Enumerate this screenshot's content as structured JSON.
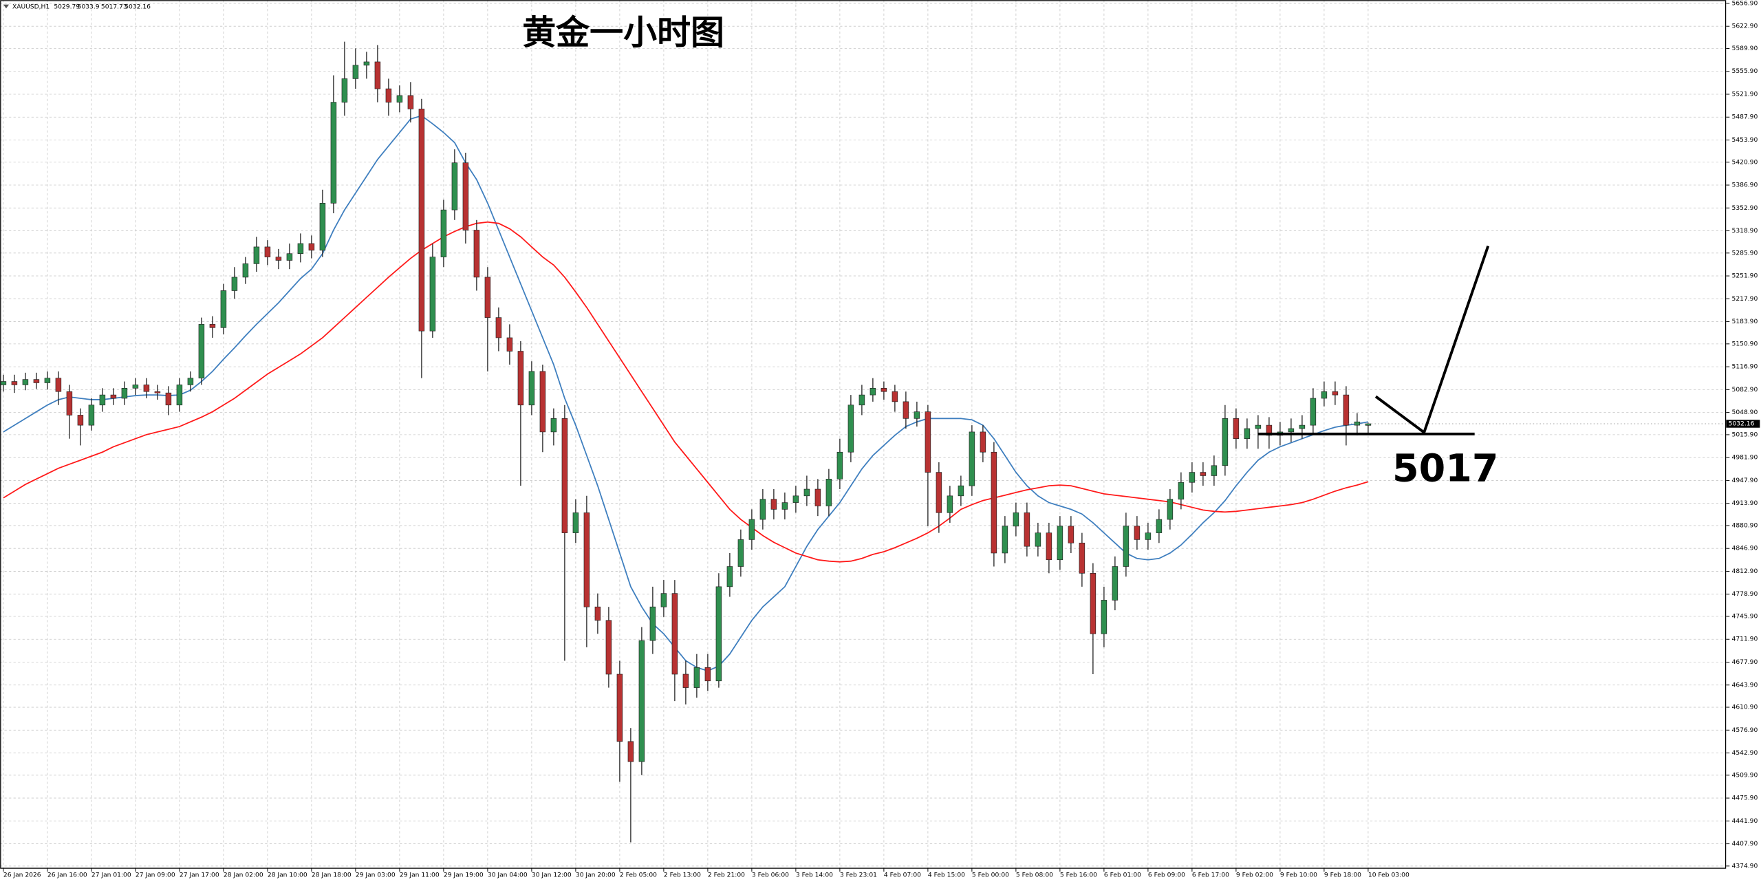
{
  "chart_data": {
    "type": "candlestick",
    "title": "黄金一小时图",
    "symbol": "XAUUSD,H1",
    "support_level": 5017,
    "up_color": "#2f8f4f",
    "down_color": "#b83232",
    "grid": true,
    "ylim": [
      4371.6,
      5661.9
    ],
    "yticks": [
      {
        "value": 5656.9,
        "label": "5656.90"
      },
      {
        "value": 5622.9,
        "label": "5622.90"
      },
      {
        "value": 5589.9,
        "label": "5589.90"
      },
      {
        "value": 5555.9,
        "label": "5555.90"
      },
      {
        "value": 5521.9,
        "label": "5521.90"
      },
      {
        "value": 5487.9,
        "label": "5487.90"
      },
      {
        "value": 5453.9,
        "label": "5453.90"
      },
      {
        "value": 5420.9,
        "label": "5420.90"
      },
      {
        "value": 5386.9,
        "label": "5386.90"
      },
      {
        "value": 5352.9,
        "label": "5352.90"
      },
      {
        "value": 5318.9,
        "label": "5318.90"
      },
      {
        "value": 5285.9,
        "label": "5285.90"
      },
      {
        "value": 5251.9,
        "label": "5251.90"
      },
      {
        "value": 5217.9,
        "label": "5217.90"
      },
      {
        "value": 5183.9,
        "label": "5183.90"
      },
      {
        "value": 5150.9,
        "label": "5150.90"
      },
      {
        "value": 5116.9,
        "label": "5116.90"
      },
      {
        "value": 5082.9,
        "label": "5082.90"
      },
      {
        "value": 5048.9,
        "label": "5048.90"
      },
      {
        "value": 5015.9,
        "label": "5015.90"
      },
      {
        "value": 4981.9,
        "label": "4981.90"
      },
      {
        "value": 4947.9,
        "label": "4947.90"
      },
      {
        "value": 4913.9,
        "label": "4913.90"
      },
      {
        "value": 4880.9,
        "label": "4880.90"
      },
      {
        "value": 4846.9,
        "label": "4846.90"
      },
      {
        "value": 4812.9,
        "label": "4812.90"
      },
      {
        "value": 4778.9,
        "label": "4778.90"
      },
      {
        "value": 4745.9,
        "label": "4745.90"
      },
      {
        "value": 4711.9,
        "label": "4711.90"
      },
      {
        "value": 4677.9,
        "label": "4677.90"
      },
      {
        "value": 4643.9,
        "label": "4643.90"
      },
      {
        "value": 4610.9,
        "label": "4610.90"
      },
      {
        "value": 4576.9,
        "label": "4576.90"
      },
      {
        "value": 4542.9,
        "label": "4542.90"
      },
      {
        "value": 4509.9,
        "label": "4509.90"
      },
      {
        "value": 4475.9,
        "label": "4475.90"
      },
      {
        "value": 4441.9,
        "label": "4441.90"
      },
      {
        "value": 4407.9,
        "label": "4407.90"
      },
      {
        "value": 4374.9,
        "label": "4374.90"
      }
    ],
    "categories": [
      "26 Jan 2026",
      null,
      null,
      null,
      "26 Jan 16:00",
      null,
      null,
      null,
      "27 Jan 01:00",
      null,
      null,
      null,
      "27 Jan 09:00",
      null,
      null,
      null,
      "27 Jan 17:00",
      null,
      null,
      null,
      "28 Jan 02:00",
      null,
      null,
      null,
      "28 Jan 10:00",
      null,
      null,
      null,
      "28 Jan 18:00",
      null,
      null,
      null,
      "29 Jan 03:00",
      null,
      null,
      null,
      "29 Jan 11:00",
      null,
      null,
      null,
      "29 Jan 19:00",
      null,
      null,
      null,
      "30 Jan 04:00",
      null,
      null,
      null,
      "30 Jan 12:00",
      null,
      null,
      null,
      "30 Jan 20:00",
      null,
      null,
      null,
      "2 Feb 05:00",
      null,
      null,
      null,
      "2 Feb 13:00",
      null,
      null,
      null,
      "2 Feb 21:00",
      null,
      null,
      null,
      "3 Feb 06:00",
      null,
      null,
      null,
      "3 Feb 14:00",
      null,
      null,
      null,
      "3 Feb 23:01",
      null,
      null,
      null,
      "4 Feb 07:00",
      null,
      null,
      null,
      "4 Feb 15:00",
      null,
      null,
      null,
      "5 Feb 00:00",
      null,
      null,
      null,
      "5 Feb 08:00",
      null,
      null,
      null,
      "5 Feb 16:00",
      null,
      null,
      null,
      "6 Feb 01:00",
      null,
      null,
      null,
      "6 Feb 09:00",
      null,
      null,
      null,
      "6 Feb 17:00",
      null,
      null,
      null,
      "9 Feb 02:00",
      null,
      null,
      null,
      "9 Feb 10:00",
      null,
      null,
      null,
      "9 Feb 18:00",
      null,
      null,
      null,
      "10 Feb 03:00"
    ],
    "open": [
      5090,
      5095,
      5090,
      5098,
      5093,
      5100,
      5080,
      5045,
      5030,
      5060,
      5075,
      5070,
      5085,
      5090,
      5080,
      5078,
      5060,
      5090,
      5100,
      5180,
      5175,
      5230,
      5250,
      5270,
      5295,
      5280,
      5275,
      5285,
      5300,
      5290,
      5360,
      5510,
      5545,
      5565,
      5570,
      5530,
      5510,
      5520,
      5500,
      5170,
      5280,
      5350,
      5420,
      5320,
      5250,
      5190,
      5160,
      5140,
      5060,
      5110,
      5020,
      5040,
      4870,
      4900,
      4760,
      4740,
      4660,
      4560,
      4530,
      4710,
      4760,
      4780,
      4660,
      4640,
      4670,
      4650,
      4790,
      4820,
      4860,
      4890,
      4920,
      4905,
      4915,
      4925,
      4935,
      4910,
      4950,
      4990,
      5060,
      5075,
      5085,
      5080,
      5065,
      5040,
      5050,
      4960,
      4900,
      4925,
      4940,
      5020,
      4990,
      4840,
      4880,
      4900,
      4850,
      4870,
      4830,
      4880,
      4855,
      4810,
      4720,
      4770,
      4820,
      4880,
      4860,
      4870,
      4890,
      4920,
      4945,
      4960,
      4955,
      4970,
      5040,
      5010,
      5025,
      5030,
      5015,
      5020,
      5025,
      5030,
      5070,
      5080,
      5075,
      5030,
      5029.79
    ],
    "high": [
      5105,
      5105,
      5108,
      5108,
      5110,
      5110,
      5090,
      5055,
      5070,
      5085,
      5085,
      5095,
      5100,
      5100,
      5090,
      5088,
      5100,
      5110,
      5190,
      5192,
      5240,
      5265,
      5280,
      5310,
      5305,
      5292,
      5300,
      5315,
      5312,
      5380,
      5550,
      5600,
      5590,
      5585,
      5595,
      5545,
      5535,
      5540,
      5515,
      5300,
      5365,
      5440,
      5435,
      5335,
      5265,
      5205,
      5180,
      5155,
      5125,
      5120,
      5055,
      5060,
      4920,
      4925,
      4780,
      4760,
      4680,
      4580,
      4730,
      4790,
      4800,
      4800,
      4680,
      4690,
      4690,
      4810,
      4840,
      4875,
      4905,
      4935,
      4935,
      4930,
      4940,
      4955,
      4950,
      4965,
      5010,
      5075,
      5090,
      5100,
      5095,
      5090,
      5080,
      5065,
      5060,
      4975,
      4940,
      4955,
      5030,
      5030,
      5005,
      4895,
      4915,
      4915,
      4885,
      4885,
      4895,
      4895,
      4870,
      4825,
      4790,
      4835,
      4900,
      4895,
      4885,
      4905,
      4935,
      4960,
      4975,
      4975,
      4985,
      5060,
      5055,
      5040,
      5045,
      5042,
      5035,
      5040,
      5045,
      5085,
      5095,
      5095,
      5088,
      5048,
      5033.9
    ],
    "low": [
      5080,
      5078,
      5082,
      5084,
      5083,
      5060,
      5010,
      5000,
      5022,
      5050,
      5060,
      5060,
      5075,
      5070,
      5068,
      5045,
      5050,
      5080,
      5090,
      5160,
      5165,
      5218,
      5240,
      5258,
      5268,
      5262,
      5262,
      5272,
      5278,
      5280,
      5345,
      5490,
      5530,
      5545,
      5510,
      5490,
      5495,
      5480,
      5100,
      5160,
      5265,
      5335,
      5300,
      5230,
      5110,
      5140,
      5120,
      4940,
      5045,
      4990,
      5000,
      4680,
      4855,
      4700,
      4720,
      4640,
      4500,
      4410,
      4510,
      4690,
      4745,
      4620,
      4615,
      4625,
      4635,
      4640,
      4775,
      4805,
      4845,
      4875,
      4890,
      4890,
      4900,
      4910,
      4895,
      4895,
      4935,
      4975,
      5045,
      5065,
      5068,
      5050,
      5025,
      5028,
      4880,
      4870,
      4885,
      4910,
      4925,
      4975,
      4820,
      4825,
      4865,
      4835,
      4835,
      4810,
      4815,
      4840,
      4790,
      4660,
      4700,
      4755,
      4805,
      4845,
      4845,
      4855,
      4875,
      4905,
      4930,
      4940,
      4940,
      4955,
      4995,
      4995,
      4995,
      4995,
      5000,
      5005,
      5010,
      5018,
      5058,
      5060,
      5000,
      5015,
      5017.73
    ],
    "close": [
      5095,
      5090,
      5098,
      5093,
      5100,
      5080,
      5045,
      5030,
      5060,
      5075,
      5070,
      5085,
      5090,
      5080,
      5078,
      5060,
      5090,
      5100,
      5180,
      5175,
      5230,
      5250,
      5270,
      5295,
      5280,
      5275,
      5285,
      5300,
      5290,
      5360,
      5510,
      5545,
      5565,
      5570,
      5530,
      5510,
      5520,
      5500,
      5170,
      5280,
      5350,
      5420,
      5320,
      5250,
      5190,
      5160,
      5140,
      5060,
      5110,
      5020,
      5040,
      4870,
      4900,
      4760,
      4740,
      4660,
      4560,
      4530,
      4710,
      4760,
      4780,
      4660,
      4640,
      4670,
      4650,
      4790,
      4820,
      4860,
      4890,
      4920,
      4905,
      4915,
      4925,
      4935,
      4910,
      4950,
      4990,
      5060,
      5075,
      5085,
      5080,
      5065,
      5040,
      5050,
      4960,
      4900,
      4925,
      4940,
      5020,
      4990,
      4840,
      4880,
      4900,
      4850,
      4870,
      4830,
      4880,
      4855,
      4810,
      4720,
      4770,
      4820,
      4880,
      4860,
      4870,
      4890,
      4920,
      4945,
      4960,
      4955,
      4970,
      5040,
      5010,
      5025,
      5030,
      5015,
      5020,
      5025,
      5030,
      5070,
      5080,
      5075,
      5030,
      5035,
      5032.16
    ],
    "lines": [
      {
        "color": "#3f7fbf",
        "values": [
          5020,
          5030,
          5040,
          5050,
          5060,
          5068,
          5072,
          5070,
          5068,
          5068,
          5070,
          5072,
          5074,
          5075,
          5075,
          5074,
          5075,
          5082,
          5095,
          5110,
          5128,
          5145,
          5163,
          5180,
          5196,
          5212,
          5230,
          5248,
          5262,
          5285,
          5320,
          5350,
          5375,
          5400,
          5425,
          5445,
          5465,
          5485,
          5490,
          5478,
          5465,
          5450,
          5420,
          5395,
          5360,
          5320,
          5280,
          5240,
          5200,
          5160,
          5120,
          5070,
          5030,
          4985,
          4940,
          4890,
          4840,
          4790,
          4760,
          4735,
          4720,
          4700,
          4680,
          4670,
          4665,
          4672,
          4690,
          4715,
          4740,
          4760,
          4775,
          4790,
          4820,
          4850,
          4875,
          4895,
          4915,
          4940,
          4965,
          4985,
          5000,
          5015,
          5028,
          5035,
          5040,
          5040,
          5040,
          5040,
          5038,
          5030,
          5010,
          4985,
          4960,
          4940,
          4925,
          4915,
          4910,
          4905,
          4898,
          4885,
          4870,
          4855,
          4840,
          4832,
          4830,
          4832,
          4840,
          4852,
          4868,
          4885,
          4900,
          4918,
          4940,
          4960,
          4978,
          4990,
          4998,
          5004,
          5010,
          5016,
          5022,
          5027,
          5030,
          5032,
          5035
        ]
      },
      {
        "color": "#ff1a1a",
        "values": [
          4922,
          4932,
          4942,
          4950,
          4958,
          4966,
          4972,
          4978,
          4984,
          4990,
          4998,
          5004,
          5010,
          5016,
          5020,
          5024,
          5028,
          5035,
          5042,
          5050,
          5060,
          5070,
          5082,
          5094,
          5106,
          5116,
          5126,
          5136,
          5148,
          5160,
          5175,
          5190,
          5205,
          5220,
          5235,
          5250,
          5264,
          5278,
          5290,
          5300,
          5310,
          5318,
          5325,
          5330,
          5332,
          5330,
          5322,
          5310,
          5295,
          5280,
          5268,
          5250,
          5228,
          5205,
          5180,
          5155,
          5130,
          5105,
          5080,
          5055,
          5030,
          5005,
          4985,
          4965,
          4945,
          4925,
          4905,
          4890,
          4878,
          4866,
          4856,
          4848,
          4840,
          4835,
          4830,
          4828,
          4827,
          4828,
          4832,
          4838,
          4842,
          4848,
          4855,
          4862,
          4870,
          4880,
          4892,
          4905,
          4912,
          4918,
          4922,
          4926,
          4930,
          4934,
          4937,
          4940,
          4941,
          4940,
          4936,
          4932,
          4928,
          4926,
          4924,
          4922,
          4920,
          4918,
          4916,
          4912,
          4908,
          4904,
          4902,
          4901,
          4902,
          4904,
          4906,
          4908,
          4910,
          4912,
          4915,
          4920,
          4926,
          4932,
          4937,
          4941,
          4946
        ]
      }
    ]
  }
}
